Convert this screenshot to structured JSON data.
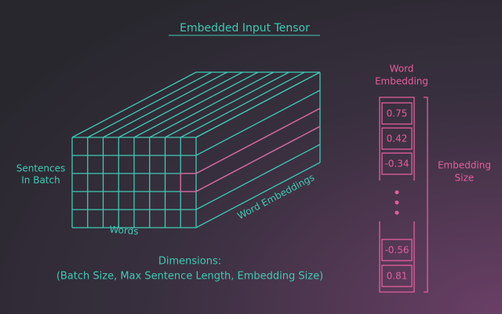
{
  "title": "Embedded Input Tensor",
  "tensor": {
    "batch_label": [
      "Sentences",
      "In Batch"
    ],
    "words_label": "Words",
    "embeddings_label": "Word Embeddings"
  },
  "embedding": {
    "title": [
      "Word",
      "Embedding"
    ],
    "cells_top": [
      "0.75",
      "0.42",
      "-0.34"
    ],
    "cells_bottom": [
      "-0.56",
      "0.81"
    ],
    "size_label": [
      "Embedding",
      "Size"
    ]
  },
  "dimensions": {
    "title": "Dimensions:",
    "text": "(Batch Size, Max Sentence Length, Embedding Size)"
  }
}
